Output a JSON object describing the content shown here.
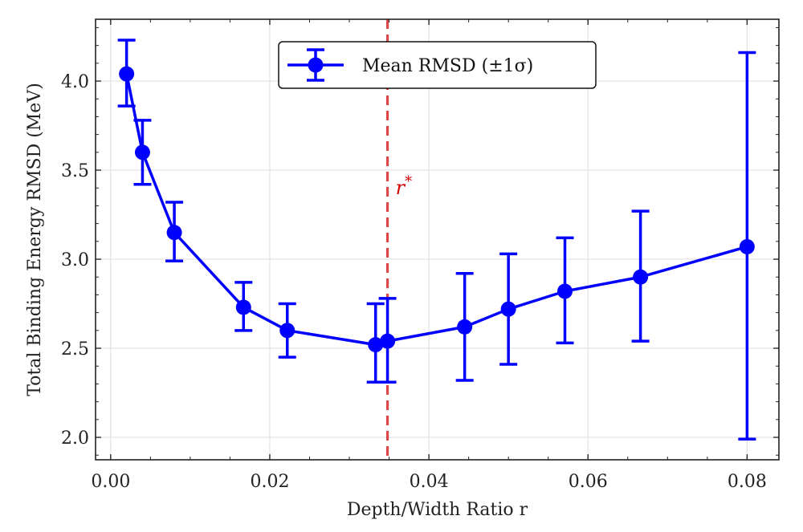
{
  "chart_data": {
    "type": "line",
    "title": "",
    "xlabel": "Depth/Width Ratio r",
    "ylabel": "Total Binding Energy RMSD (MeV)",
    "xlim": [
      -0.0019,
      0.084
    ],
    "ylim": [
      1.874,
      4.347
    ],
    "grid": true,
    "xticks": [
      0.0,
      0.02,
      0.04,
      0.06,
      0.08
    ],
    "xtick_labels": [
      "0.00",
      "0.02",
      "0.04",
      "0.06",
      "0.08"
    ],
    "yticks": [
      2.0,
      2.5,
      3.0,
      3.5,
      4.0
    ],
    "ytick_labels": [
      "2.0",
      "2.5",
      "3.0",
      "3.5",
      "4.0"
    ],
    "legend": {
      "placement": "top-center",
      "entries": [
        "Mean RMSD (±1σ)"
      ]
    },
    "series": [
      {
        "name": "Mean RMSD (±1σ)",
        "color": "#0000ff",
        "x": [
          0.002,
          0.004,
          0.008,
          0.0167,
          0.0222,
          0.0333,
          0.0348,
          0.0445,
          0.05,
          0.0571,
          0.0666,
          0.08
        ],
        "y": [
          4.04,
          3.6,
          3.15,
          2.73,
          2.6,
          2.52,
          2.54,
          2.62,
          2.72,
          2.82,
          2.9,
          3.07
        ],
        "err_upper": [
          4.23,
          3.78,
          3.32,
          2.87,
          2.75,
          2.75,
          2.78,
          2.92,
          3.03,
          3.12,
          3.27,
          4.16
        ],
        "err_lower": [
          3.86,
          3.42,
          2.99,
          2.6,
          2.45,
          2.31,
          2.31,
          2.32,
          2.41,
          2.53,
          2.54,
          1.99
        ]
      }
    ],
    "annotations": [
      {
        "type": "vline",
        "x": 0.0348,
        "color": "#d62728",
        "style": "dashed",
        "label": "r*",
        "label_y": 3.4
      }
    ]
  }
}
